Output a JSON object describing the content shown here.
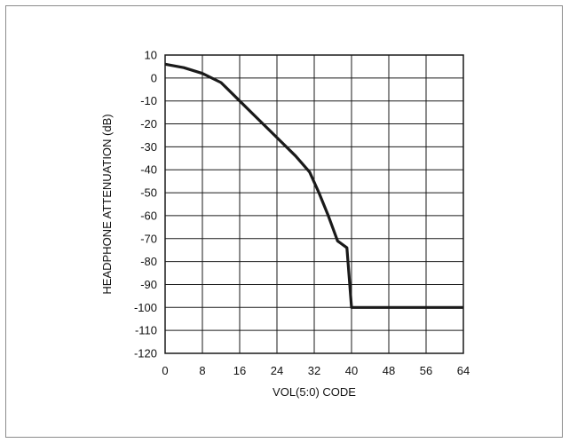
{
  "chart_data": {
    "type": "line",
    "title": "",
    "xlabel": "VOL(5:0) CODE",
    "ylabel": "HEADPHONE ATTENUATION (dB)",
    "xlim": [
      0,
      64
    ],
    "ylim": [
      -120,
      10
    ],
    "xticks": [
      0,
      8,
      16,
      24,
      32,
      40,
      48,
      56,
      64
    ],
    "yticks": [
      10,
      0,
      -10,
      -20,
      -30,
      -40,
      -50,
      -60,
      -70,
      -80,
      -90,
      -100,
      -110,
      -120
    ],
    "grid": true,
    "legend": "none",
    "series": [
      {
        "color": "#1a1a1a",
        "x": [
          0,
          4,
          8,
          12,
          16,
          20,
          24,
          28,
          31,
          33,
          35,
          37,
          39,
          40,
          48,
          56,
          64
        ],
        "y": [
          6,
          4.5,
          2,
          -2,
          -10,
          -18,
          -26,
          -34,
          -41,
          -50,
          -60,
          -71,
          -74,
          -100,
          -100,
          -100,
          -100
        ]
      }
    ]
  }
}
